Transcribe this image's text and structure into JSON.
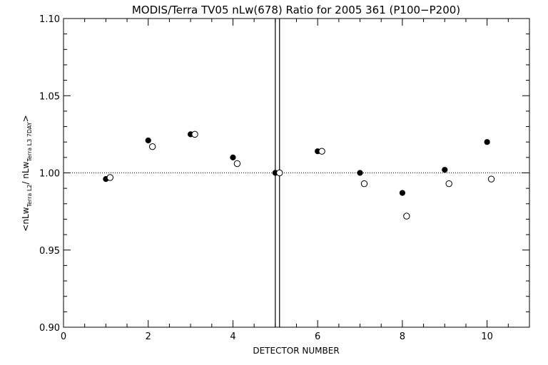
{
  "chart_data": {
    "type": "scatter",
    "title": "MODIS/Terra TV05 nLw(678) Ratio for 2005 361 (P100−P200)",
    "xlabel": "DETECTOR NUMBER",
    "ylabel": {
      "prefix": "<nLw",
      "sub1": "Terra L2",
      "mid": "/ nLw",
      "sub2": "Terra L3 7DAY",
      "suffix": ">"
    },
    "xlim": [
      0,
      11
    ],
    "ylim": [
      0.9,
      1.1
    ],
    "x_ticks": [
      0,
      2,
      4,
      6,
      8,
      10
    ],
    "x_tick_labels": [
      "0",
      "2",
      "4",
      "6",
      "8",
      "10"
    ],
    "y_ticks": [
      0.9,
      0.95,
      1.0,
      1.05,
      1.1
    ],
    "y_tick_labels": [
      "0.90",
      "0.95",
      "1.00",
      "1.05",
      "1.10"
    ],
    "reference_line": {
      "y": 1.0,
      "style": "dotted"
    },
    "vertical_lines": [
      5.0,
      5.1
    ],
    "grid": false,
    "legend": "none",
    "series": [
      {
        "marker": "filled-circle",
        "x": [
          1,
          2,
          3,
          4,
          5,
          6,
          7,
          8,
          9,
          10
        ],
        "y": [
          0.996,
          1.021,
          1.025,
          1.01,
          1.0,
          1.014,
          1.0,
          0.987,
          1.002,
          1.02
        ]
      },
      {
        "marker": "open-circle",
        "x": [
          1.1,
          2.1,
          3.1,
          4.1,
          5.1,
          6.1,
          7.1,
          8.1,
          9.1,
          10.1
        ],
        "y": [
          0.997,
          1.017,
          1.025,
          1.006,
          1.0,
          1.014,
          0.993,
          0.972,
          0.993,
          0.996
        ]
      }
    ]
  }
}
